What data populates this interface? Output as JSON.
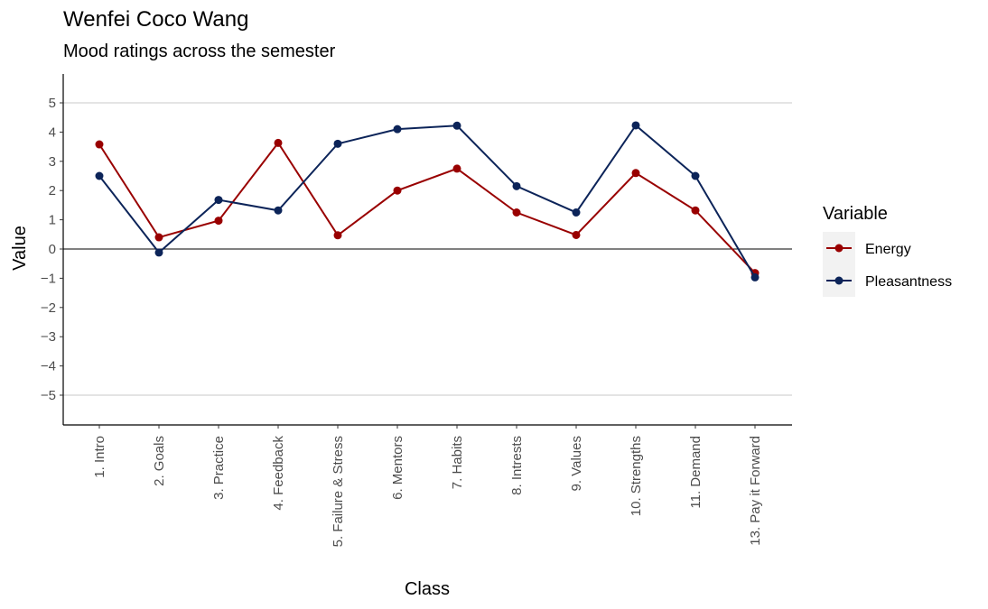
{
  "chart_data": {
    "type": "line",
    "title": "Wenfei Coco Wang",
    "subtitle": "Mood ratings across the semester",
    "xlabel": "Class",
    "ylabel": "Value",
    "categories": [
      "1. Intro",
      "2. Goals",
      "3. Practice",
      "4. Feedback",
      "5. Failure & Stress",
      "6. Mentors",
      "7. Habits",
      "8. Intrests",
      "9. Values",
      "10. Strengths",
      "11. Demand",
      "13. Pay it Forward"
    ],
    "y_ticks": [
      5,
      4,
      3,
      2,
      1,
      0,
      -1,
      -2,
      -3,
      -4,
      -5
    ],
    "y_tick_labels": [
      "5",
      "4",
      "3",
      "2",
      "1",
      "0",
      "−1",
      "−2",
      "−3",
      "−4",
      "−5"
    ],
    "ylim": [
      -6,
      6
    ],
    "grid": "horizontal major lines at -5 and 5; reference line at 0",
    "legend": {
      "title": "Variable",
      "position": "right"
    },
    "series": [
      {
        "name": "Energy",
        "color": "#990000",
        "values": [
          3.58,
          0.4,
          0.97,
          3.63,
          0.47,
          2.0,
          2.75,
          1.25,
          0.48,
          2.6,
          1.32,
          -0.82
        ]
      },
      {
        "name": "Pleasantness",
        "color": "#0c2459",
        "values": [
          2.5,
          -0.12,
          1.68,
          1.32,
          3.6,
          4.1,
          4.22,
          2.15,
          1.25,
          4.23,
          2.5,
          -0.97
        ]
      }
    ]
  }
}
